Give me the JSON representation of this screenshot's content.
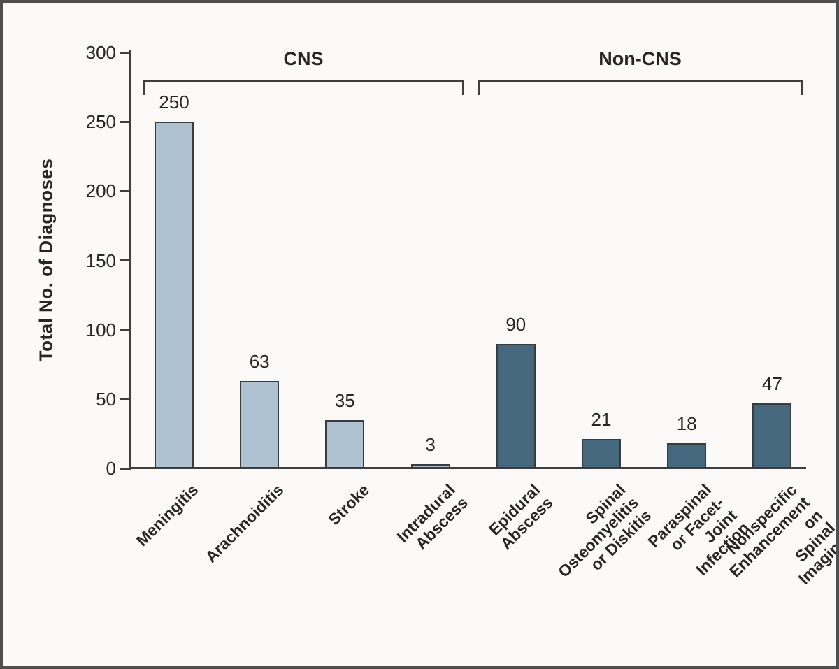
{
  "figure": {
    "y_axis_title": "Total No. of Diagnoses"
  },
  "chart_data": {
    "type": "bar",
    "title": "",
    "xlabel": "",
    "ylabel": "Total No. of Diagnoses",
    "ylim": [
      0,
      300
    ],
    "yticks": [
      0,
      50,
      100,
      150,
      200,
      250,
      300
    ],
    "grid": false,
    "legend": "none",
    "groups": [
      {
        "label": "CNS",
        "category_indices": [
          0,
          1,
          2,
          3
        ],
        "color": "#aec2d1"
      },
      {
        "label": "Non-CNS",
        "category_indices": [
          4,
          5,
          6,
          7
        ],
        "color": "#46687e"
      }
    ],
    "categories": [
      "Meningitis",
      "Arachnoiditis",
      "Stroke",
      "Intradural Abscess",
      "Epidural Abscess",
      "Spinal Osteomyelitis or Diskitis",
      "Paraspinal or Facet-Joint Infection",
      "Nonspecific Enhancement on Spinal Imaging"
    ],
    "category_label_lines": [
      [
        "Meningitis"
      ],
      [
        "Arachnoiditis"
      ],
      [
        "Stroke"
      ],
      [
        "Intradural Abscess"
      ],
      [
        "Epidural Abscess"
      ],
      [
        "Spinal Osteomyelitis",
        "or Diskitis"
      ],
      [
        "Paraspinal or Facet-",
        "Joint Infection"
      ],
      [
        "Nonspecific",
        "Enhancement on",
        "Spinal Imaging"
      ]
    ],
    "values": [
      250,
      63,
      35,
      3,
      90,
      21,
      18,
      47
    ],
    "value_labels": [
      "250",
      "63",
      "35",
      "3",
      "90",
      "21",
      "18",
      "47"
    ],
    "colors": {
      "bar_cns": "#aec2d1",
      "bar_non_cns": "#46687e",
      "bar_border": "#3b3b3b",
      "axis": "#3f3f3f",
      "text": "#262626",
      "background": "#fbfaf8",
      "frame_border": "#4f4f4f"
    }
  }
}
